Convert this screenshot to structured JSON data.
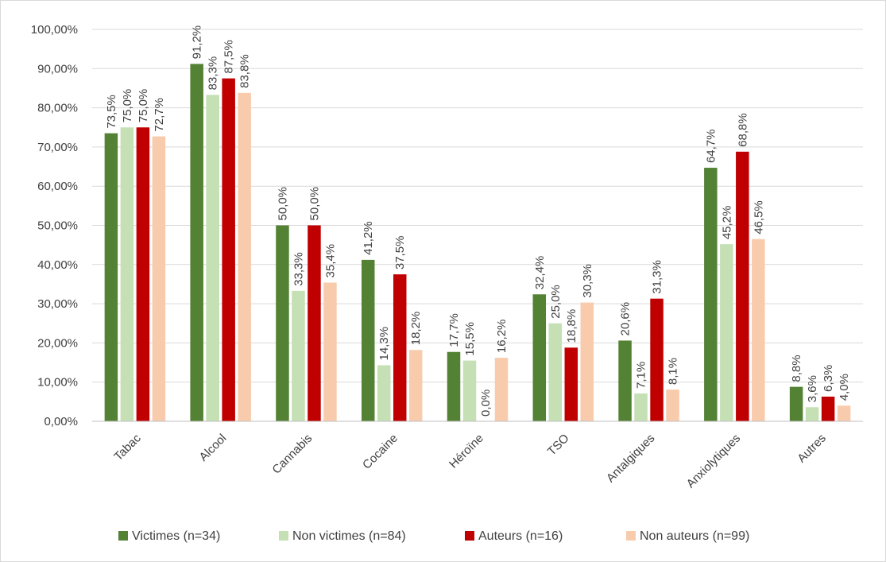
{
  "chart_data": {
    "type": "bar",
    "title": "",
    "xlabel": "",
    "ylabel": "",
    "ylim": [
      0,
      100
    ],
    "yticks": [
      "0,00%",
      "10,00%",
      "20,00%",
      "30,00%",
      "40,00%",
      "50,00%",
      "60,00%",
      "70,00%",
      "80,00%",
      "90,00%",
      "100,00%"
    ],
    "ytick_values": [
      0,
      10,
      20,
      30,
      40,
      50,
      60,
      70,
      80,
      90,
      100
    ],
    "grid": true,
    "legend_position": "bottom",
    "categories": [
      "Tabac",
      "Alcool",
      "Cannabis",
      "Cocaine",
      "Héroïne",
      "TSO",
      "Antalgiques",
      "Anxiolytiques",
      "Autres"
    ],
    "series": [
      {
        "name": "Victimes (n=34)",
        "color": "#548235",
        "values": [
          73.5,
          91.2,
          50.0,
          41.2,
          17.7,
          32.4,
          20.6,
          64.7,
          8.8
        ],
        "labels": [
          "73,5%",
          "91,2%",
          "50,0%",
          "41,2%",
          "17,7%",
          "32,4%",
          "20,6%",
          "64,7%",
          "8,8%"
        ]
      },
      {
        "name": "Non victimes (n=84)",
        "color": "#c5e0b4",
        "values": [
          75.0,
          83.3,
          33.3,
          14.3,
          15.5,
          25.0,
          7.1,
          45.2,
          3.6
        ],
        "labels": [
          "75,0%",
          "83,3%",
          "33,3%",
          "14,3%",
          "15,5%",
          "25,0%",
          "7,1%",
          "45,2%",
          "3,6%"
        ]
      },
      {
        "name": "Auteurs (n=16)",
        "color": "#c00000",
        "values": [
          75.0,
          87.5,
          50.0,
          37.5,
          0.0,
          18.8,
          31.3,
          68.8,
          6.3
        ],
        "labels": [
          "75,0%",
          "87,5%",
          "50,0%",
          "37,5%",
          "0,0%",
          "18,8%",
          "31,3%",
          "68,8%",
          "6,3%"
        ]
      },
      {
        "name": "Non auteurs (n=99)",
        "color": "#f8cbad",
        "values": [
          72.7,
          83.8,
          35.4,
          18.2,
          16.2,
          30.3,
          8.1,
          46.5,
          4.0
        ],
        "labels": [
          "72,7%",
          "83,8%",
          "35,4%",
          "18,2%",
          "16,2%",
          "30,3%",
          "8,1%",
          "46,5%",
          "4,0%"
        ]
      }
    ]
  }
}
